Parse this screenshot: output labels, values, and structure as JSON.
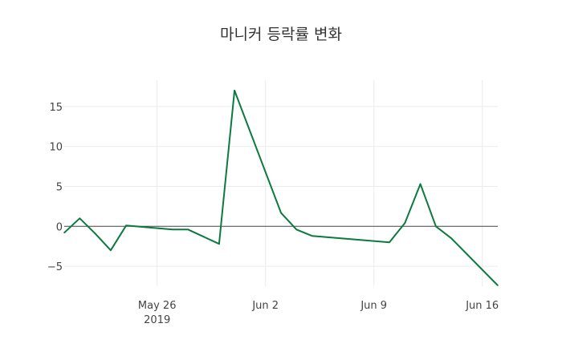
{
  "chart_data": {
    "type": "line",
    "title": "마니커 등락률 변화",
    "xlabel": "",
    "ylabel": "",
    "x": [
      "2019-05-20",
      "2019-05-21",
      "2019-05-22",
      "2019-05-23",
      "2019-05-24",
      "2019-05-27",
      "2019-05-28",
      "2019-05-30",
      "2019-05-31",
      "2019-06-03",
      "2019-06-04",
      "2019-06-05",
      "2019-06-10",
      "2019-06-11",
      "2019-06-12",
      "2019-06-13",
      "2019-06-14",
      "2019-06-17"
    ],
    "series": [
      {
        "name": "등락률",
        "color": "#0b7a3e",
        "values": [
          -0.8,
          1.0,
          -0.9,
          -3.0,
          0.1,
          -0.4,
          -0.4,
          -2.2,
          17.0,
          1.7,
          -0.4,
          -1.2,
          -2.0,
          0.4,
          5.3,
          0.0,
          -1.5,
          -7.4
        ]
      }
    ],
    "xlim": [
      "2019-05-20",
      "2019-06-17"
    ],
    "ylim": [
      -7.5,
      18.3
    ],
    "yticks": [
      -5,
      0,
      5,
      10,
      15
    ],
    "ytick_labels": [
      "−5",
      "0",
      "5",
      "10",
      "15"
    ],
    "xticks": [
      "2019-05-26",
      "2019-06-02",
      "2019-06-09",
      "2019-06-16"
    ],
    "xtick_labels": [
      "May 26",
      "Jun 2",
      "Jun 9",
      "Jun 16"
    ],
    "xtick_sublabel": "2019",
    "grid": true,
    "zeroline": true,
    "legend": "none"
  }
}
